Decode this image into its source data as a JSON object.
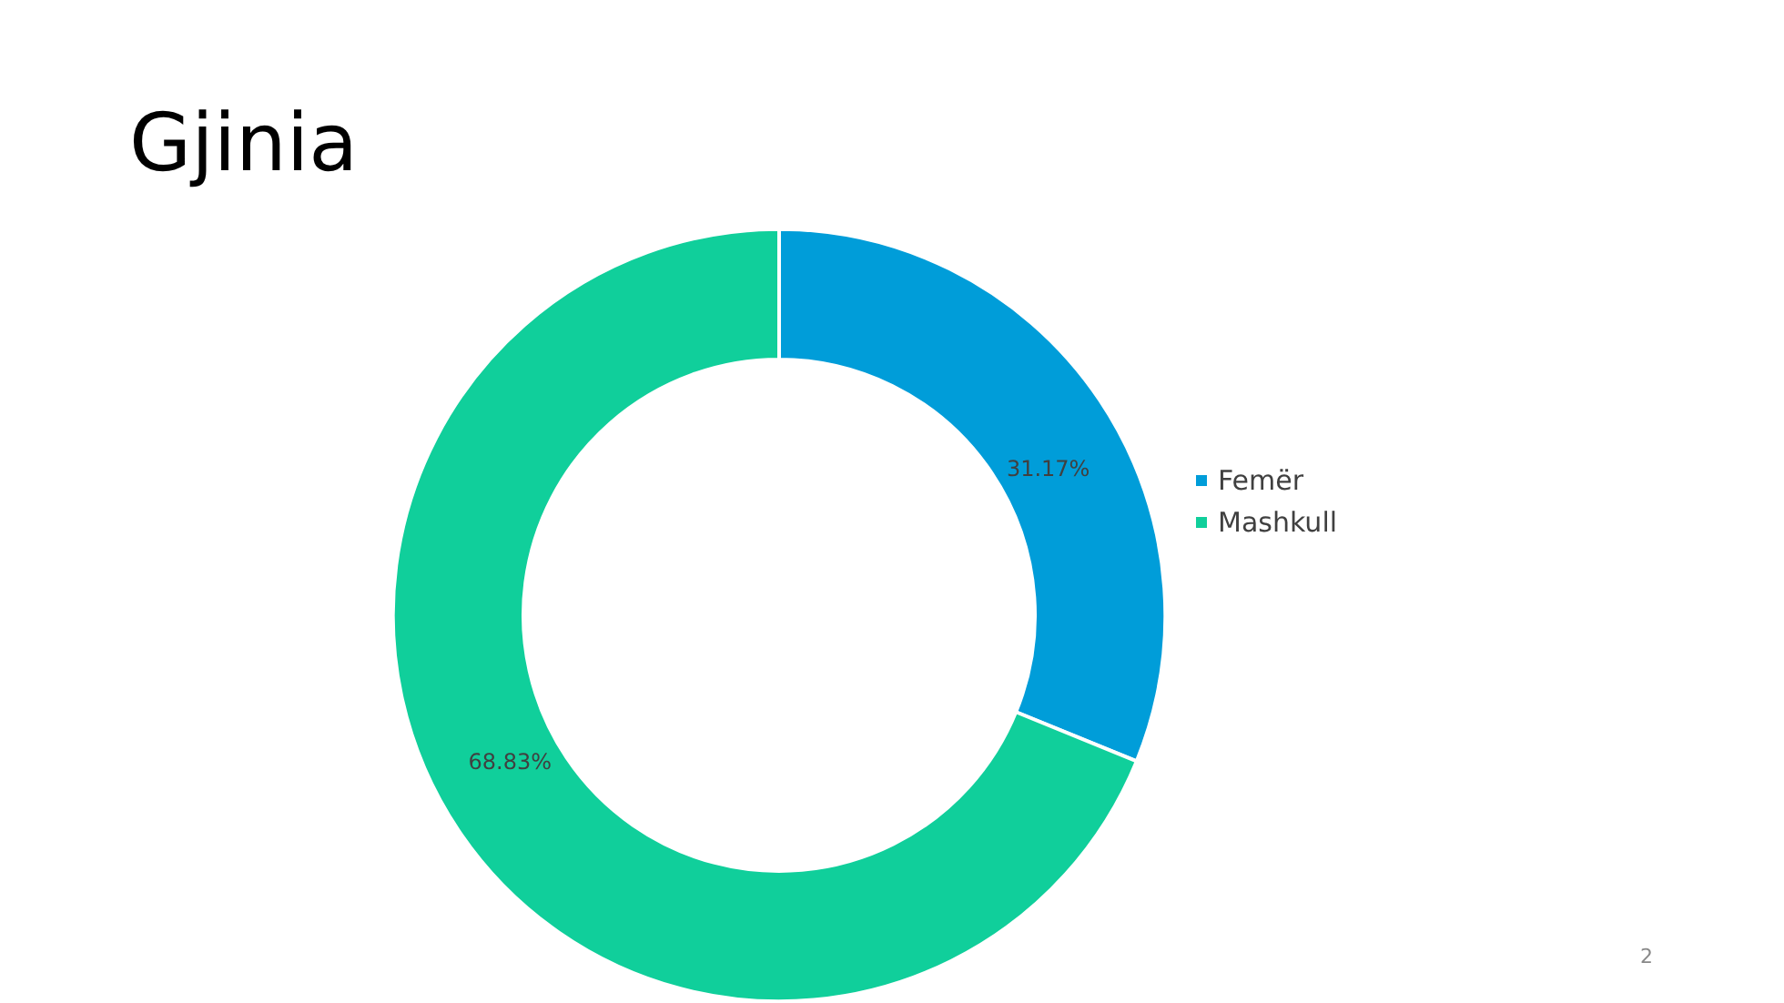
{
  "chart_data": {
    "type": "donut",
    "title": "Gjinia",
    "categories": [
      "Femër",
      "Mashkull"
    ],
    "values": [
      31.17,
      68.83
    ],
    "colors": [
      "#009dd9",
      "#10cf9b"
    ],
    "value_labels": [
      "31.17%",
      "68.83%"
    ],
    "legend": "right",
    "annotations": [
      "2"
    ]
  }
}
